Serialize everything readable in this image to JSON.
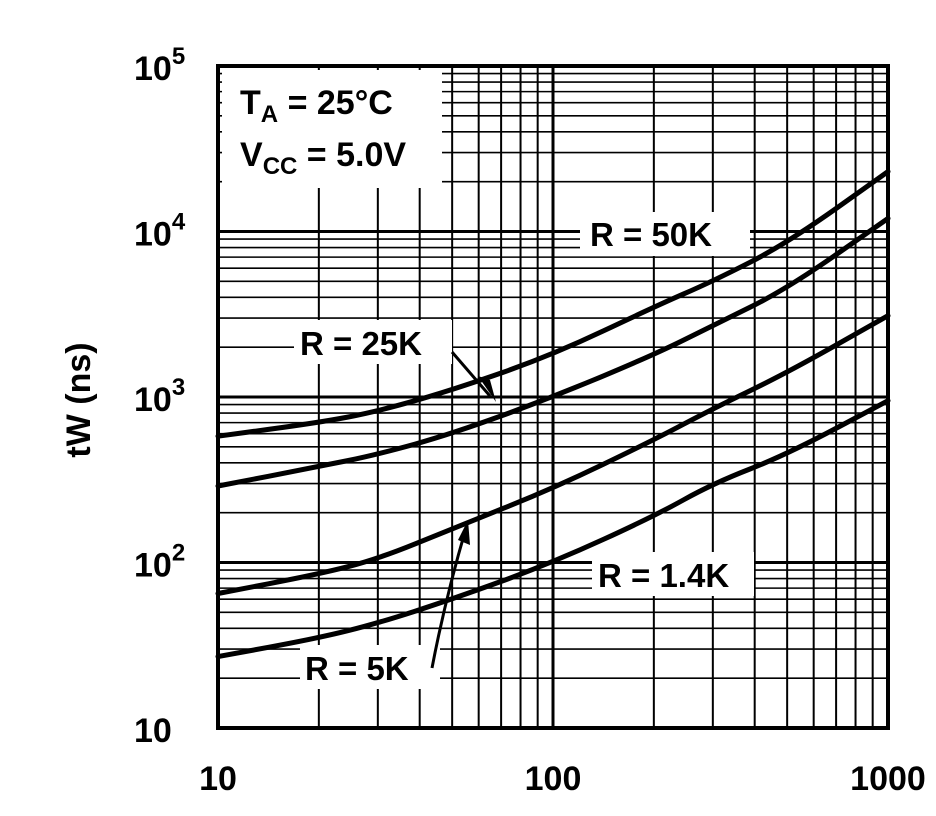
{
  "chart_data": {
    "type": "line",
    "xscale": "log",
    "yscale": "log",
    "xlim": [
      10,
      1000
    ],
    "ylim": [
      10,
      100000
    ],
    "xlabel": "",
    "ylabel": "tW (ns)",
    "grid": true,
    "x_ticks": [
      "10",
      "100",
      "1000"
    ],
    "y_ticks": [
      {
        "base": "10",
        "exp": "5"
      },
      {
        "base": "10",
        "exp": "4"
      },
      {
        "base": "10",
        "exp": "3"
      },
      {
        "base": "10",
        "exp": "2"
      },
      {
        "base": "10",
        "exp": ""
      }
    ],
    "conditions": [
      {
        "sym": "T",
        "sub": "A",
        "rest": " = 25°C"
      },
      {
        "sym": "V",
        "sub": "CC",
        "rest": " = 5.0V"
      }
    ],
    "series": [
      {
        "name": "R = 50K",
        "x": [
          10,
          20,
          30,
          50,
          100,
          200,
          300,
          500,
          1000
        ],
        "y": [
          580,
          700,
          820,
          1100,
          1800,
          3500,
          5000,
          8500,
          23000
        ]
      },
      {
        "name": "R = 25K",
        "x": [
          10,
          20,
          30,
          50,
          100,
          200,
          300,
          500,
          1000
        ],
        "y": [
          290,
          380,
          450,
          600,
          1000,
          1800,
          2700,
          4500,
          12000
        ]
      },
      {
        "name": "R = 5K",
        "x": [
          10,
          20,
          30,
          50,
          100,
          200,
          300,
          500,
          1000
        ],
        "y": [
          65,
          85,
          105,
          160,
          280,
          550,
          850,
          1400,
          3100
        ]
      },
      {
        "name": "R = 1.4K",
        "x": [
          10,
          20,
          30,
          50,
          100,
          200,
          300,
          500,
          1000
        ],
        "y": [
          27,
          35,
          43,
          60,
          100,
          190,
          300,
          450,
          950
        ]
      }
    ]
  }
}
